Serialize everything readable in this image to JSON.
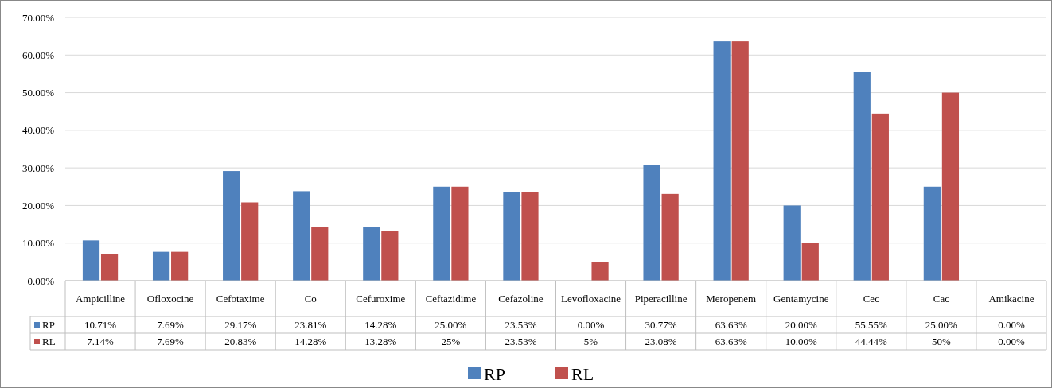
{
  "chart_data": {
    "type": "bar",
    "categories": [
      "Ampicilline",
      "Ofloxocine",
      "Cefotaxime",
      "Co",
      "Cefuroxime",
      "Ceftazidime",
      "Cefazoline",
      "Levofloxacine",
      "Piperacilline",
      "Meropenem",
      "Gentamycine",
      "Cec",
      "Cac",
      "Amikacine"
    ],
    "series": [
      {
        "name": "RP",
        "color": "#4f81bd",
        "values": [
          10.71,
          7.69,
          29.17,
          23.81,
          14.28,
          25.0,
          23.53,
          0.0,
          30.77,
          63.63,
          20.0,
          55.55,
          25.0,
          0.0
        ],
        "value_labels": [
          "10.71%",
          "7.69%",
          "29.17%",
          "23.81%",
          "14.28%",
          "25.00%",
          "23.53%",
          "0.00%",
          "30.77%",
          "63.63%",
          "20.00%",
          "55.55%",
          "25.00%",
          "0.00%"
        ]
      },
      {
        "name": "RL",
        "color": "#c0504d",
        "values": [
          7.14,
          7.69,
          20.83,
          14.28,
          13.28,
          25,
          23.53,
          5,
          23.08,
          63.63,
          10.0,
          44.44,
          50,
          0.0
        ],
        "value_labels": [
          "7.14%",
          "7.69%",
          "20.83%",
          "14.28%",
          "13.28%",
          "25%",
          "23.53%",
          "5%",
          "23.08%",
          "63.63%",
          "10.00%",
          "44.44%",
          "50%",
          "0.00%"
        ]
      }
    ],
    "ylim": [
      0,
      70
    ],
    "yticks": [
      {
        "value": 0,
        "label": "0.00%"
      },
      {
        "value": 10,
        "label": "10.00%"
      },
      {
        "value": 20,
        "label": "20.00%"
      },
      {
        "value": 30,
        "label": "30.00%"
      },
      {
        "value": 40,
        "label": "40.00%"
      },
      {
        "value": 50,
        "label": "50.00%"
      },
      {
        "value": 60,
        "label": "60.00%"
      },
      {
        "value": 70,
        "label": "70.00%"
      }
    ],
    "grid": "y",
    "legend": "bottom"
  }
}
